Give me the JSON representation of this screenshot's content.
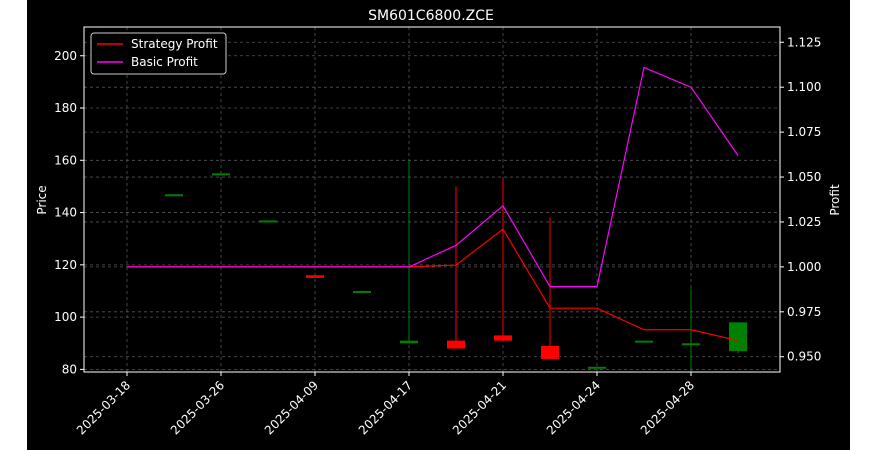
{
  "chart_data": {
    "type": "candlestick+line",
    "title": "SM601C6800.ZCE",
    "xlabel": "",
    "ylabel_left": "Price",
    "ylabel_right": "Profit",
    "ylim_left": [
      79,
      211
    ],
    "ylim_right": [
      0.9415,
      1.1335
    ],
    "yticks_left": [
      "80",
      "100",
      "120",
      "140",
      "160",
      "180",
      "200"
    ],
    "yticks_right": [
      "0.950",
      "0.975",
      "1.000",
      "1.025",
      "1.050",
      "1.075",
      "1.100",
      "1.125"
    ],
    "xtick_labels": [
      "2025-03-18",
      "2025-03-26",
      "2025-04-09",
      "2025-04-17",
      "2025-04-21",
      "2025-04-24",
      "2025-04-28"
    ],
    "xtick_index": [
      0,
      2,
      4,
      6,
      8,
      10,
      12
    ],
    "grid": true,
    "legend_position": "top-left",
    "colors": {
      "up": "#008000",
      "down": "#ff0000",
      "strategy": "#ff0000",
      "basic": "#ff00ff",
      "background": "#000000",
      "foreground": "#ffffff",
      "grid": "#555555"
    },
    "candles": [
      {
        "i": 1,
        "open": 147.0,
        "close": 147.0,
        "high": 147.0,
        "low": 147.0
      },
      {
        "i": 2,
        "open": 155.0,
        "close": 155.0,
        "high": 155.0,
        "low": 155.0
      },
      {
        "i": 3,
        "open": 137.0,
        "close": 137.0,
        "high": 137.0,
        "low": 137.0
      },
      {
        "i": 4,
        "open": 116.0,
        "close": 115.0,
        "high": 116.0,
        "low": 115.0
      },
      {
        "i": 5,
        "open": 110.0,
        "close": 110.0,
        "high": 110.0,
        "low": 110.0
      },
      {
        "i": 6,
        "open": 90.0,
        "close": 91.0,
        "high": 160.0,
        "low": 90.0
      },
      {
        "i": 7,
        "open": 91.0,
        "close": 88.0,
        "high": 150.0,
        "low": 88.0
      },
      {
        "i": 8,
        "open": 93.0,
        "close": 91.0,
        "high": 153.0,
        "low": 91.0
      },
      {
        "i": 9,
        "open": 89.0,
        "close": 84.0,
        "high": 138.0,
        "low": 84.0
      },
      {
        "i": 10,
        "open": 81.0,
        "close": 81.0,
        "high": 81.0,
        "low": 81.0
      },
      {
        "i": 11,
        "open": 91.0,
        "close": 91.0,
        "high": 91.0,
        "low": 91.0
      },
      {
        "i": 12,
        "open": 90.0,
        "close": 90.0,
        "high": 111.0,
        "low": 80.0
      },
      {
        "i": 13,
        "open": 87.0,
        "close": 98.0,
        "high": 98.0,
        "low": 86.0
      }
    ],
    "series": [
      {
        "name": "Strategy Profit",
        "axis": "right",
        "x": [
          0,
          1,
          2,
          3,
          4,
          5,
          6,
          7,
          8,
          9,
          10,
          11,
          12,
          13
        ],
        "values": [
          1.0,
          1.0,
          1.0,
          1.0,
          1.0,
          1.0,
          1.0,
          1.001,
          1.021,
          0.977,
          0.977,
          0.965,
          0.965,
          0.959
        ]
      },
      {
        "name": "Basic Profit",
        "axis": "right",
        "x": [
          0,
          1,
          2,
          3,
          4,
          5,
          6,
          7,
          8,
          9,
          10,
          11,
          12,
          13
        ],
        "values": [
          1.0,
          1.0,
          1.0,
          1.0,
          1.0,
          1.0,
          1.0,
          1.012,
          1.034,
          0.989,
          0.989,
          1.111,
          1.1,
          1.062
        ]
      }
    ]
  }
}
